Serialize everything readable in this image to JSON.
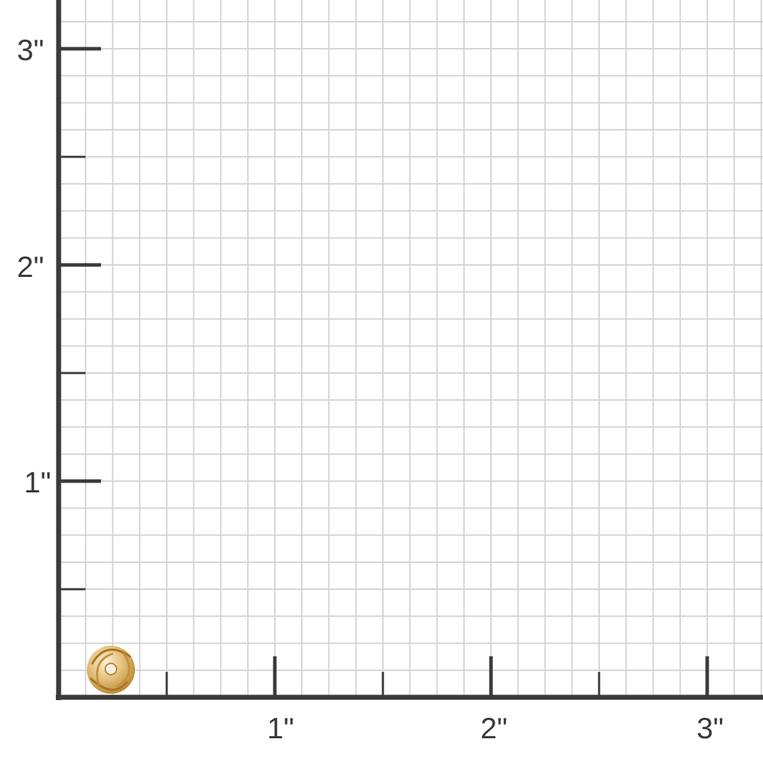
{
  "ruler": {
    "unit_symbol": "\"",
    "x_labels": [
      "1\"",
      "2\"",
      "3\""
    ],
    "y_labels": [
      "1\"",
      "2\"",
      "3\""
    ],
    "subdivisions_per_inch": 8,
    "axis_color": "#3a3a3a",
    "grid_color": "#d4d4d4"
  },
  "product": {
    "icon": "gold-love-knot-earring-icon",
    "color": "#d9b46a"
  }
}
